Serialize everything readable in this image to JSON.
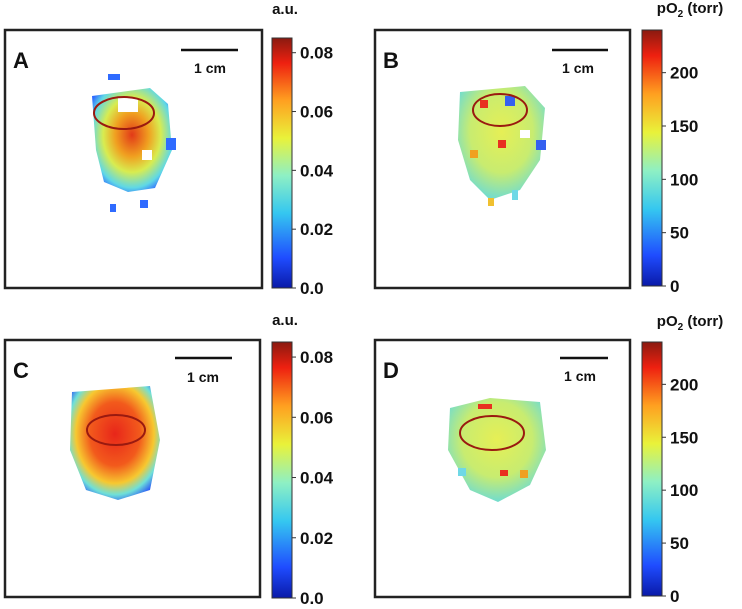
{
  "panels": [
    {
      "label": "A",
      "scale_bar": "1 cm",
      "colorbar": {
        "title": "a.u.",
        "lim": [
          0,
          0.085
        ],
        "ticks": [
          {
            "value": 0,
            "label": "0.0"
          },
          0.02,
          0.04,
          0.06,
          0.08
        ]
      }
    },
    {
      "label": "B",
      "scale_bar": "1 cm",
      "colorbar": {
        "title": {
          "pre": "pO",
          "sub": "2",
          "post": " (torr)"
        },
        "lim": [
          0,
          240
        ],
        "ticks": [
          0,
          50,
          100,
          150,
          200
        ]
      }
    },
    {
      "label": "C",
      "scale_bar": "1 cm",
      "colorbar": {
        "title": "a.u.",
        "lim": [
          0,
          0.085
        ],
        "ticks": [
          {
            "value": 0,
            "label": "0.0"
          },
          0.02,
          0.04,
          0.06,
          0.08
        ]
      }
    },
    {
      "label": "D",
      "scale_bar": "1 cm",
      "colorbar": {
        "title": {
          "pre": "pO",
          "sub": "2",
          "post": " (torr)"
        },
        "lim": [
          0,
          240
        ],
        "ticks": [
          0,
          50,
          100,
          150,
          200
        ]
      }
    }
  ]
}
